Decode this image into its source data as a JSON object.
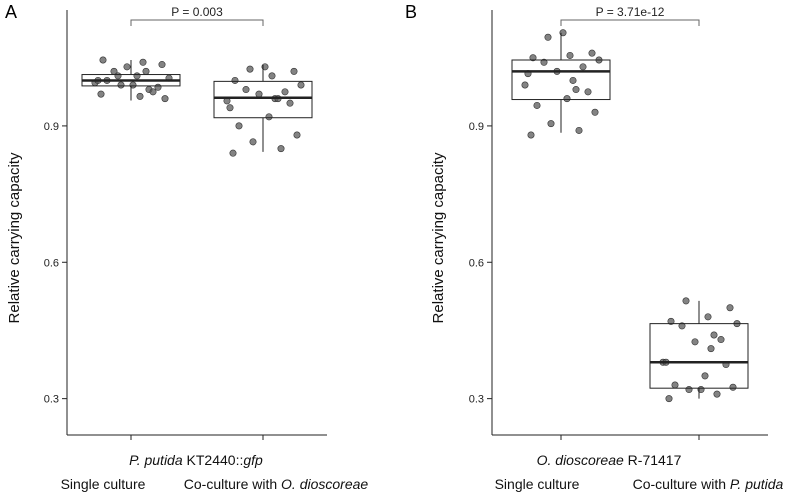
{
  "chart_data": [
    {
      "type": "box",
      "panel": "A",
      "ylabel": "Relative carrying capacity",
      "ylim": [
        0.22,
        1.155
      ],
      "yticks": [
        0.3,
        0.6,
        0.9
      ],
      "ytick_labels": [
        "0.3",
        "0.6",
        "0.9"
      ],
      "organism_prefix": "P. putida",
      "organism_suffix_plain": " KT2440::",
      "organism_suffix_italic": "gfp",
      "categories": [
        {
          "label": "Single culture",
          "label_plain": "Single culture",
          "label_italic": ""
        },
        {
          "label": "Co-culture with O. dioscoreae",
          "label_plain": "Co-culture with ",
          "label_italic": "O. dioscoreae"
        }
      ],
      "boxes": [
        {
          "q1": 0.988,
          "median": 1.0,
          "q3": 1.013,
          "whisker_low": 0.956,
          "whisker_high": 1.045
        },
        {
          "q1": 0.918,
          "median": 0.962,
          "q3": 0.998,
          "whisker_low": 0.843,
          "whisker_high": 1.034
        }
      ],
      "points": [
        [
          0.97,
          0.98,
          0.99,
          0.96,
          1.0,
          1.01,
          0.985,
          0.995,
          1.04,
          1.03,
          0.975,
          1.02,
          1.005,
          1.045,
          0.965,
          1.035,
          1.01,
          0.99,
          1.0,
          1.02
        ],
        [
          0.84,
          0.85,
          0.865,
          0.88,
          0.9,
          0.92,
          0.95,
          0.955,
          0.96,
          0.97,
          0.975,
          0.98,
          0.99,
          1.0,
          1.01,
          1.02,
          1.025,
          1.03,
          0.94,
          0.96
        ]
      ],
      "significance": "P = 0.003"
    },
    {
      "type": "box",
      "panel": "B",
      "ylabel": "Relative carrying capacity",
      "ylim": [
        0.22,
        1.155
      ],
      "yticks": [
        0.3,
        0.6,
        0.9
      ],
      "ytick_labels": [
        "0.3",
        "0.6",
        "0.9"
      ],
      "organism_prefix": "O. dioscoreae",
      "organism_suffix_plain": " R-71417",
      "organism_suffix_italic": "",
      "categories": [
        {
          "label": "Single culture",
          "label_plain": "Single culture",
          "label_italic": ""
        },
        {
          "label": "Co-culture with P. putida",
          "label_plain": "Co-culture with ",
          "label_italic": "P. putida"
        }
      ],
      "boxes": [
        {
          "q1": 0.958,
          "median": 1.02,
          "q3": 1.045,
          "whisker_low": 0.885,
          "whisker_high": 1.105
        },
        {
          "q1": 0.323,
          "median": 0.38,
          "q3": 0.465,
          "whisker_low": 0.3,
          "whisker_high": 0.515
        }
      ],
      "points": [
        [
          0.88,
          0.89,
          0.905,
          0.93,
          0.945,
          0.96,
          0.975,
          0.99,
          1.0,
          1.02,
          1.03,
          1.04,
          1.045,
          1.05,
          1.055,
          1.06,
          1.095,
          1.105,
          1.015,
          0.98
        ],
        [
          0.3,
          0.31,
          0.32,
          0.325,
          0.33,
          0.35,
          0.375,
          0.38,
          0.41,
          0.425,
          0.43,
          0.46,
          0.465,
          0.47,
          0.48,
          0.5,
          0.515,
          0.32,
          0.38,
          0.44
        ]
      ],
      "significance": "P = 3.71e-12"
    }
  ]
}
